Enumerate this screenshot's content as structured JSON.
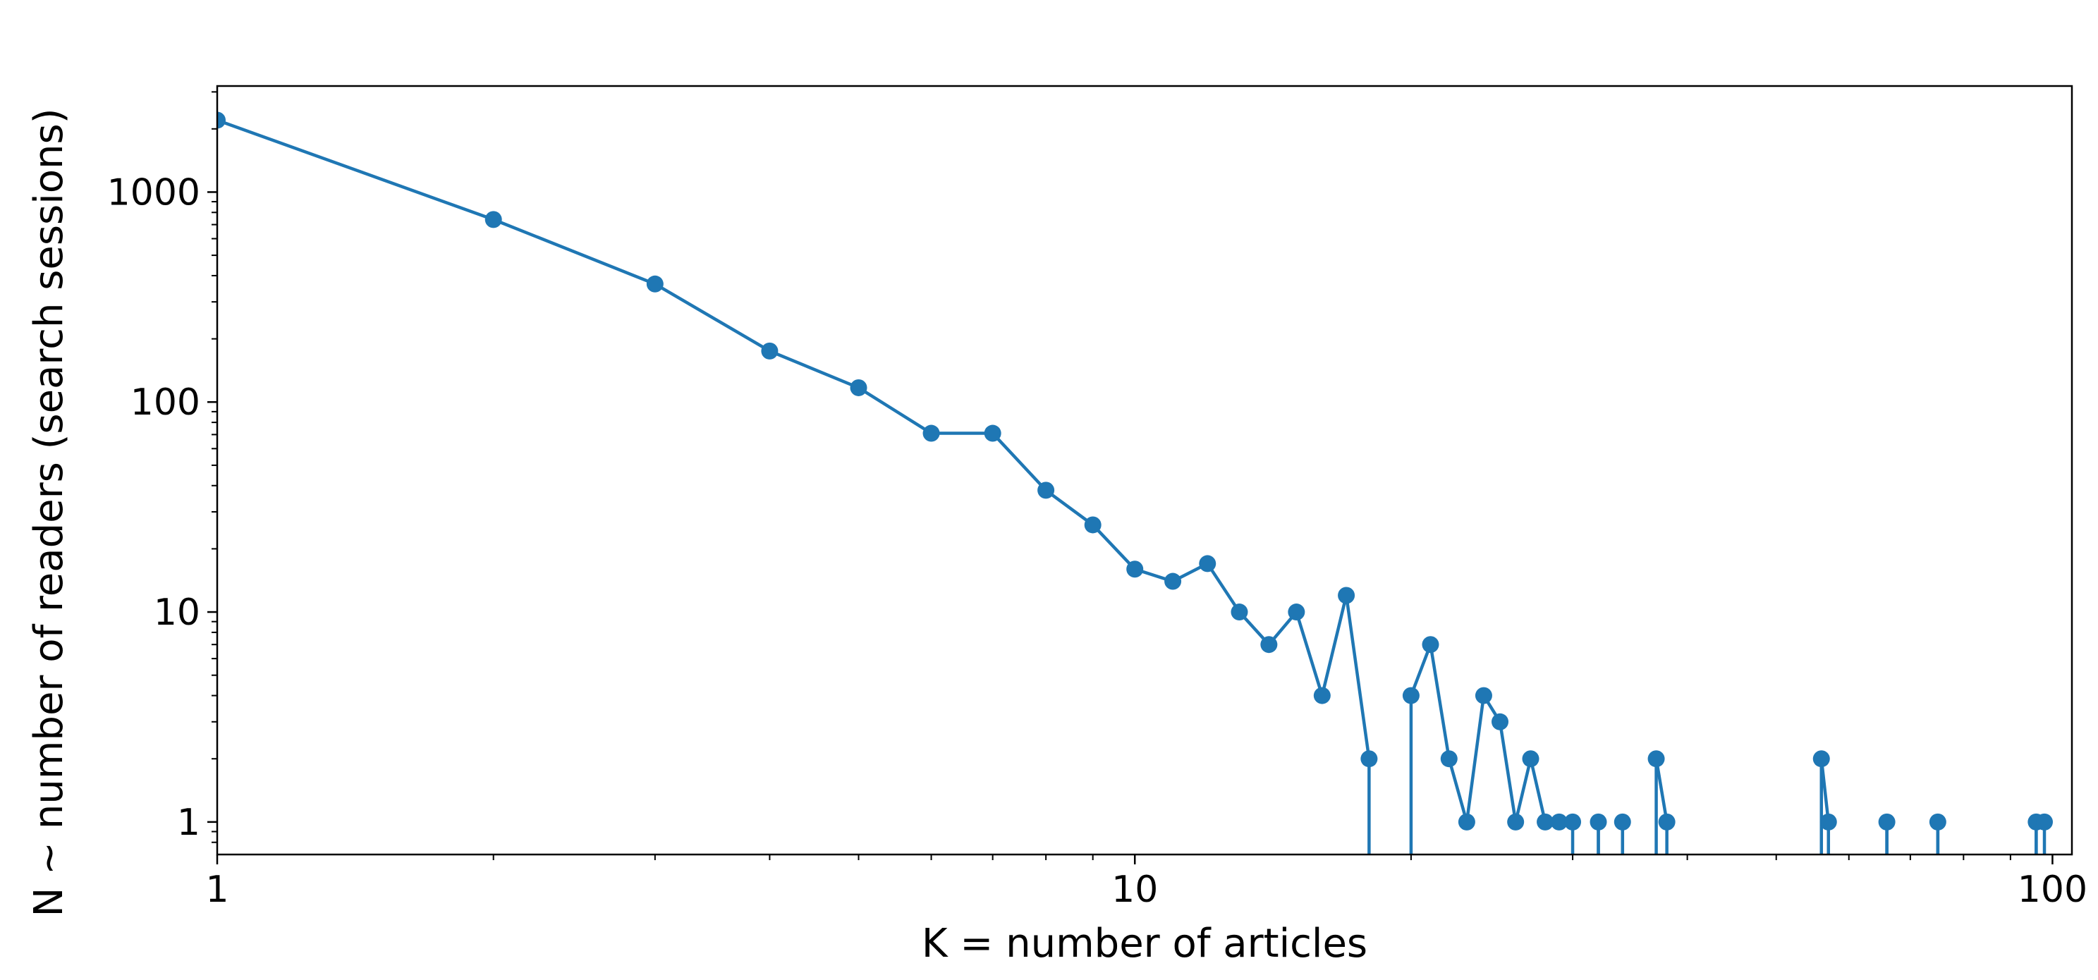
{
  "chart_data": {
    "type": "line",
    "title": "",
    "xlabel": "K = number of articles",
    "ylabel": "N ~ number of readers (search sessions)",
    "xscale": "log",
    "yscale": "log",
    "xlim": [
      1,
      105
    ],
    "ylim": [
      0.7,
      3200
    ],
    "grid": false,
    "x_ticks": [
      {
        "value": 1,
        "label": "1"
      },
      {
        "value": 10,
        "label": "10"
      },
      {
        "value": 100,
        "label": "100"
      }
    ],
    "y_ticks": [
      {
        "value": 1,
        "label": "1"
      },
      {
        "value": 10,
        "label": "10"
      },
      {
        "value": 100,
        "label": "100"
      },
      {
        "value": 1000,
        "label": "1000"
      }
    ],
    "color": "#1f77b4",
    "note_zero_values": "points with N = 0 are drawn as lines dropping below the axis bottom",
    "series": [
      {
        "x": [
          1,
          2,
          3,
          4,
          5,
          6,
          7,
          8,
          9,
          10,
          11,
          12,
          13,
          14,
          15,
          16,
          17,
          18,
          19,
          20,
          21,
          22,
          23,
          24,
          25,
          26,
          27,
          28,
          29,
          30,
          31,
          32,
          33,
          34,
          35,
          36,
          37,
          38,
          39,
          40,
          41,
          42,
          43,
          44,
          45,
          46,
          47,
          48,
          49,
          50,
          51,
          52,
          53,
          54,
          55,
          56,
          57,
          58,
          59,
          60,
          61,
          62,
          63,
          64,
          65,
          66,
          67,
          68,
          69,
          70,
          71,
          72,
          73,
          74,
          75,
          76,
          77,
          78,
          79,
          80,
          81,
          82,
          83,
          84,
          85,
          86,
          87,
          88,
          89,
          90,
          91,
          92,
          93,
          94,
          95,
          96,
          97,
          98
        ],
        "y": [
          2200,
          740,
          365,
          175,
          117,
          71,
          71,
          38,
          26,
          16,
          14,
          17,
          10,
          7,
          10,
          4,
          12,
          2,
          0,
          4,
          7,
          2,
          1,
          4,
          3,
          1,
          2,
          1,
          1,
          1,
          0,
          1,
          0,
          1,
          0,
          0,
          2,
          1,
          0,
          0,
          0,
          0,
          0,
          0,
          0,
          0,
          0,
          0,
          0,
          0,
          0,
          0,
          0,
          0,
          0,
          2,
          1,
          0,
          0,
          0,
          0,
          0,
          0,
          0,
          0,
          1,
          0,
          0,
          0,
          0,
          0,
          0,
          0,
          0,
          1,
          0,
          0,
          0,
          0,
          0,
          0,
          0,
          0,
          0,
          0,
          0,
          0,
          0,
          0,
          0,
          0,
          0,
          0,
          0,
          0,
          1,
          0,
          1
        ]
      }
    ]
  }
}
